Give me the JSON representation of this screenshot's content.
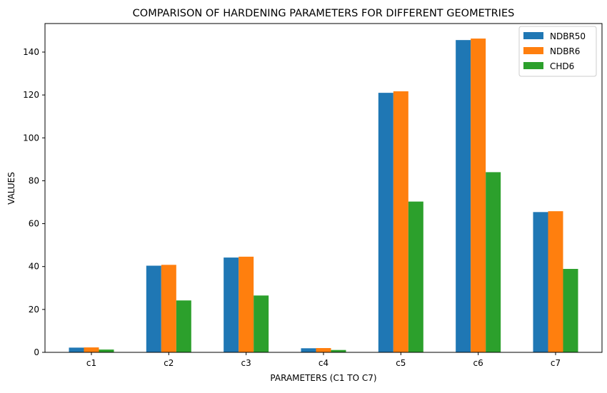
{
  "chart_data": {
    "type": "bar",
    "title": "COMPARISON OF HARDENING PARAMETERS FOR DIFFERENT GEOMETRIES",
    "xlabel": "PARAMETERS (C1 TO C7)",
    "ylabel": "VALUES",
    "categories": [
      "c1",
      "c2",
      "c3",
      "c4",
      "c5",
      "c6",
      "c7"
    ],
    "series": [
      {
        "name": "NDBR50",
        "color": "#1f77b4",
        "values": [
          2.2,
          40.4,
          44.2,
          1.9,
          121.0,
          145.6,
          65.4
        ]
      },
      {
        "name": "NDBR6",
        "color": "#ff7f0e",
        "values": [
          2.3,
          40.8,
          44.6,
          2.0,
          121.7,
          146.3,
          65.8
        ]
      },
      {
        "name": "CHD6",
        "color": "#2ca02c",
        "values": [
          1.3,
          24.2,
          26.5,
          1.1,
          70.3,
          84.0,
          38.9
        ]
      }
    ],
    "ylim": [
      0,
      153.3
    ],
    "yticks": [
      0,
      20,
      40,
      60,
      80,
      100,
      120,
      140
    ],
    "grid": false,
    "legend": "top-right"
  }
}
